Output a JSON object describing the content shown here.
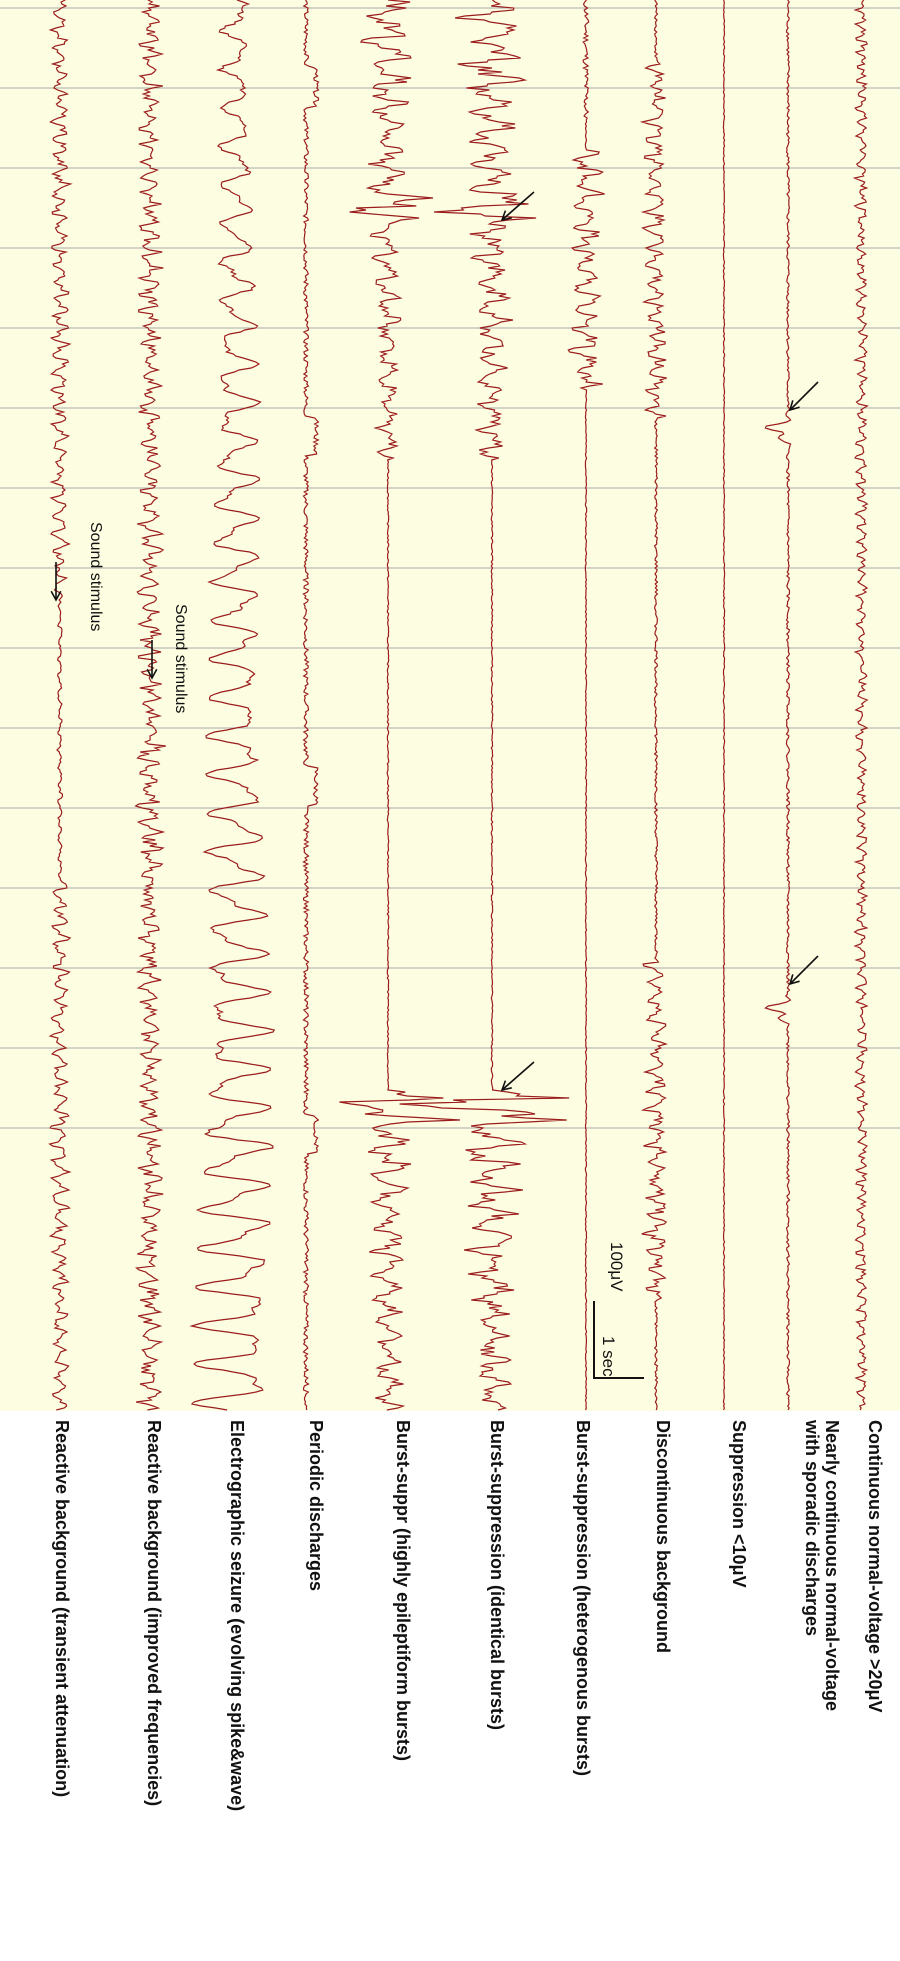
{
  "traces": [
    {
      "id": "continuous-normal",
      "label": "Continuous normal-voltage >20μV",
      "style": "normal"
    },
    {
      "id": "nearly-continuous",
      "label_line1": "Nearly continuous normal-voltage",
      "label_line2": "with sporadic discharges",
      "style": "sporadic"
    },
    {
      "id": "suppression",
      "label": "Suppression <10μV",
      "style": "flat"
    },
    {
      "id": "discontinuous",
      "label": "Discontinuous background",
      "style": "discontinuous"
    },
    {
      "id": "bs-heterogenous",
      "label": "Burst-suppression (heterogenous bursts)",
      "style": "bs-het"
    },
    {
      "id": "bs-identical",
      "label": "Burst-suppression (identical bursts)",
      "style": "bs-ident"
    },
    {
      "id": "bs-epileptiform",
      "label": "Burst-suppr (highly epileptiform bursts)",
      "style": "bs-epi"
    },
    {
      "id": "periodic",
      "label": "Periodic discharges",
      "style": "periodic"
    },
    {
      "id": "seizure",
      "label": "Electrographic seizure (evolving spike&wave)",
      "style": "seizure"
    },
    {
      "id": "reactive-improved",
      "label": "Reactive background (improved frequencies)",
      "style": "reactive-improved"
    },
    {
      "id": "reactive-attenuation",
      "label": "Reactive background (transient attenuation)",
      "style": "reactive-atten"
    }
  ],
  "annotations": {
    "stimulus_1": "Sound stimulus",
    "stimulus_2": "Sound stimulus"
  },
  "scale_bar": {
    "amplitude": "100μV",
    "time": "1 sec"
  },
  "colors": {
    "trace": "#9b1c1c",
    "background": "#fdfde2",
    "gridline": "#a9a9a9",
    "text": "#111111"
  }
}
